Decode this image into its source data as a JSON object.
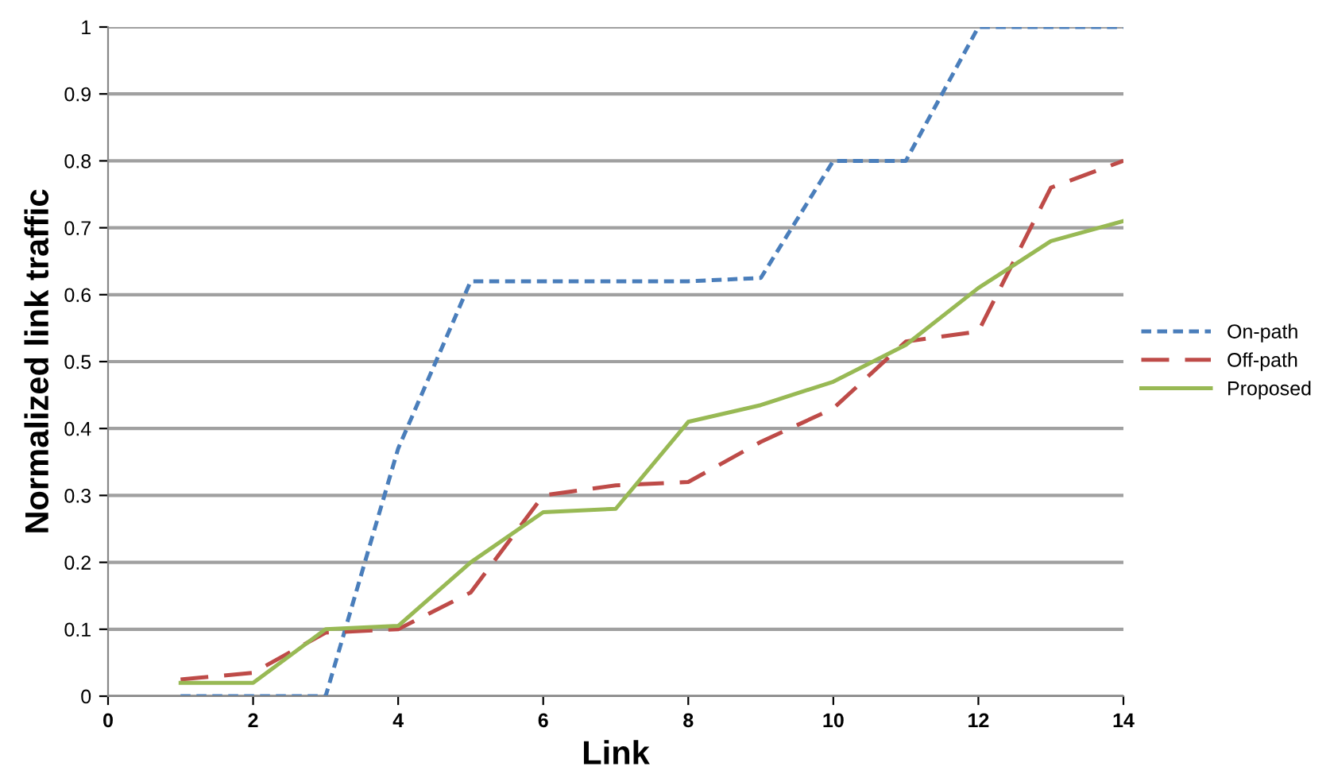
{
  "chart_data": {
    "type": "line",
    "xlabel": "Link",
    "ylabel": "Normalized link traffic",
    "x": [
      1,
      2,
      3,
      4,
      5,
      6,
      7,
      8,
      9,
      10,
      11,
      12,
      13,
      14
    ],
    "series": [
      {
        "name": "On-path",
        "color": "#4a7ebb",
        "line_style": "dotted",
        "values": [
          0,
          0,
          0,
          0.37,
          0.62,
          0.62,
          0.62,
          0.62,
          0.625,
          0.8,
          0.8,
          1,
          1,
          1
        ]
      },
      {
        "name": "Off-path",
        "color": "#be4b48",
        "line_style": "dashed",
        "values": [
          0.025,
          0.035,
          0.095,
          0.1,
          0.155,
          0.3,
          0.315,
          0.32,
          0.38,
          0.43,
          0.53,
          0.545,
          0.76,
          0.8
        ]
      },
      {
        "name": "Proposed",
        "color": "#98b954",
        "line_style": "solid",
        "values": [
          0.02,
          0.02,
          0.1,
          0.105,
          0.2,
          0.275,
          0.28,
          0.41,
          0.435,
          0.47,
          0.525,
          0.61,
          0.68,
          0.71
        ]
      }
    ],
    "xlim": [
      0,
      14
    ],
    "xticks": [
      0,
      2,
      4,
      6,
      8,
      10,
      12,
      14
    ],
    "ylim": [
      0,
      1
    ],
    "yticks": [
      0,
      0.1,
      0.2,
      0.3,
      0.4,
      0.5,
      0.6,
      0.7,
      0.8,
      0.9,
      1
    ],
    "grid": "y",
    "legend": "right",
    "marker": "none"
  }
}
